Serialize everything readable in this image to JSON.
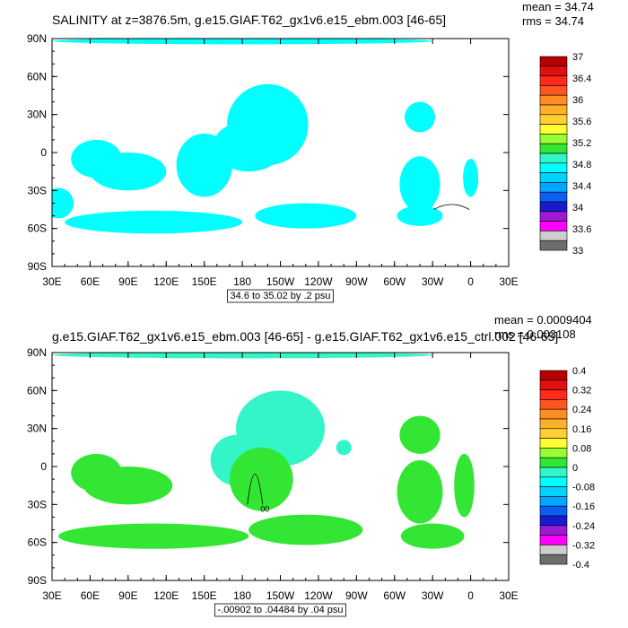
{
  "colors": {
    "land": "#ffffff",
    "contour": "#000000",
    "palette": [
      "#6e6e6e",
      "#cdcdcd",
      "#ff00ff",
      "#9c1ad1",
      "#1a1acd",
      "#0a60f0",
      "#00a6ff",
      "#00d2ff",
      "#00ffff",
      "#33f5c8",
      "#33e633",
      "#99ff33",
      "#ffff33",
      "#ffd033",
      "#ffb02a",
      "#ff8c24",
      "#ff5520",
      "#ff2a1a",
      "#e01010",
      "#b30000"
    ]
  },
  "chart_data": [
    {
      "type": "heatmap",
      "title": "SALINITY at z=3876.5m, g.e15.GIAF.T62_gx1v6.e15_ebm.003 [46-65]",
      "stats": {
        "mean": "mean = 34.74",
        "rms": "rms = 34.74"
      },
      "caption": "34.6 to 35.02 by .2 psu",
      "x_ticks": [
        "30E",
        "60E",
        "90E",
        "120E",
        "150E",
        "180",
        "150W",
        "120W",
        "90W",
        "60W",
        "30W",
        "0",
        "30E"
      ],
      "y_ticks": [
        "90N",
        "60N",
        "30N",
        "0",
        "30S",
        "60S",
        "90S"
      ],
      "colorbar": {
        "labels": [
          "37",
          "36.4",
          "36",
          "35.6",
          "35.2",
          "34.8",
          "34.4",
          "34",
          "33.6",
          "33"
        ],
        "min": 33,
        "max": 37,
        "step": 0.2
      },
      "field_value": 34.8,
      "blobs": [
        {
          "lon": 200,
          "lat": 22,
          "rlon": 32,
          "rlat": 32,
          "value": 34.8
        },
        {
          "lon": 185,
          "lat": 5,
          "rlon": 28,
          "rlat": 20,
          "value": 34.8
        },
        {
          "lon": 150,
          "lat": -10,
          "rlon": 22,
          "rlat": 25,
          "value": 34.8
        },
        {
          "lon": 90,
          "lat": -15,
          "rlon": 30,
          "rlat": 15,
          "value": 34.8
        },
        {
          "lon": 65,
          "lat": -5,
          "rlon": 20,
          "rlat": 15,
          "value": 34.8
        },
        {
          "lon": 110,
          "lat": -55,
          "rlon": 70,
          "rlat": 9,
          "value": 34.8
        },
        {
          "lon": 230,
          "lat": -50,
          "rlon": 40,
          "rlat": 10,
          "value": 34.8
        },
        {
          "lon": 320,
          "lat": 28,
          "rlon": 12,
          "rlat": 12,
          "value": 34.8
        },
        {
          "lon": 320,
          "lat": -25,
          "rlon": 16,
          "rlat": 22,
          "value": 34.8
        },
        {
          "lon": 320,
          "lat": -50,
          "rlon": 18,
          "rlat": 8,
          "value": 34.8
        },
        {
          "lon": 360,
          "lat": -20,
          "rlon": 6,
          "rlat": 15,
          "value": 34.8
        },
        {
          "lon": 35,
          "lat": -40,
          "rlon": 12,
          "rlat": 12,
          "value": 34.8
        },
        {
          "lon": 180,
          "lat": 88,
          "rlon": 150,
          "rlat": 2.5,
          "value": 34.8
        }
      ],
      "contour_line": {
        "lon": 345,
        "lat": -45,
        "rlon": 14,
        "rlat": 5
      }
    },
    {
      "type": "heatmap",
      "title": "g.e15.GIAF.T62_gx1v6.e15_ebm.003 [46-65] - g.e15.GIAF.T62_gx1v6.e15_ctrl.002 [46-65]",
      "stats": {
        "mean": "mean = 0.0009404",
        "rms": "rms = 0.003108"
      },
      "caption": "-.00902 to .04484 by .04 psu",
      "x_ticks": [
        "30E",
        "60E",
        "90E",
        "120E",
        "150E",
        "180",
        "150W",
        "120W",
        "90W",
        "60W",
        "30W",
        "0",
        "30E"
      ],
      "y_ticks": [
        "90N",
        "60N",
        "30N",
        "0",
        "30S",
        "60S",
        "90S"
      ],
      "colorbar": {
        "labels": [
          "0.4",
          "0.32",
          "0.24",
          "0.16",
          "0.08",
          "0",
          "-0.08",
          "-0.16",
          "-0.24",
          "-0.32",
          "-0.4"
        ],
        "min": -0.4,
        "max": 0.4,
        "step": 0.04
      },
      "field_value": 0.02,
      "blobs": [
        {
          "lon": 210,
          "lat": 30,
          "rlon": 35,
          "rlat": 30,
          "value": -0.02
        },
        {
          "lon": 175,
          "lat": 5,
          "rlon": 20,
          "rlat": 20,
          "value": -0.02
        },
        {
          "lon": 195,
          "lat": -10,
          "rlon": 25,
          "rlat": 25,
          "value": 0.02
        },
        {
          "lon": 90,
          "lat": -15,
          "rlon": 35,
          "rlat": 15,
          "value": 0.02
        },
        {
          "lon": 65,
          "lat": -5,
          "rlon": 20,
          "rlat": 15,
          "value": 0.02
        },
        {
          "lon": 110,
          "lat": -55,
          "rlon": 75,
          "rlat": 10,
          "value": 0.02
        },
        {
          "lon": 230,
          "lat": -50,
          "rlon": 45,
          "rlat": 12,
          "value": 0.02
        },
        {
          "lon": 320,
          "lat": 25,
          "rlon": 16,
          "rlat": 15,
          "value": 0.02
        },
        {
          "lon": 320,
          "lat": -20,
          "rlon": 18,
          "rlat": 25,
          "value": 0.02
        },
        {
          "lon": 355,
          "lat": -15,
          "rlon": 8,
          "rlat": 25,
          "value": 0.02
        },
        {
          "lon": 330,
          "lat": -55,
          "rlon": 25,
          "rlat": 10,
          "value": 0.02
        },
        {
          "lon": 260,
          "lat": 15,
          "rlon": 6,
          "rlat": 6,
          "value": -0.02
        },
        {
          "lon": 180,
          "lat": 88,
          "rlon": 150,
          "rlat": 2.5,
          "value": -0.02
        }
      ],
      "contour_line": {
        "lon": 190,
        "lat": -30,
        "rlon": 6,
        "rlat": 30
      },
      "contour_label": "00"
    }
  ]
}
